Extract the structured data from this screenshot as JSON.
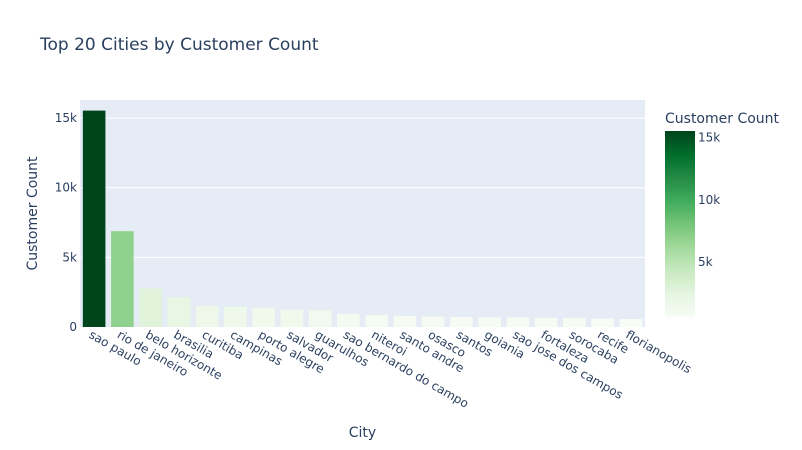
{
  "chart_data": {
    "type": "bar",
    "title": "Top 20 Cities by Customer Count",
    "xlabel": "City",
    "ylabel": "Customer Count",
    "ylim": [
      0,
      16300
    ],
    "yticks": [
      0,
      5000,
      10000,
      15000
    ],
    "ytick_labels": [
      "0",
      "5k",
      "10k",
      "15k"
    ],
    "grid": true,
    "categories": [
      "sao paulo",
      "rio de janeiro",
      "belo horizonte",
      "brasilia",
      "curitiba",
      "campinas",
      "porto alegre",
      "salvador",
      "guarulhos",
      "sao bernardo do campo",
      "niteroi",
      "santo andre",
      "osasco",
      "santos",
      "goiania",
      "sao jose dos campos",
      "fortaleza",
      "sorocaba",
      "recife",
      "florianopolis"
    ],
    "values": [
      15540,
      6882,
      2773,
      2131,
      1521,
      1444,
      1379,
      1245,
      1189,
      938,
      849,
      797,
      746,
      713,
      692,
      691,
      654,
      633,
      613,
      570
    ],
    "colorbar": {
      "title": "Customer Count",
      "min": 570,
      "max": 15540,
      "ticks": [
        5000,
        10000,
        15000
      ],
      "tick_labels": [
        "5k",
        "10k",
        "15k"
      ],
      "colorscale": [
        "#f7fcf5",
        "#e5f5e0",
        "#c7e9c0",
        "#a1d99b",
        "#74c476",
        "#41ab5d",
        "#238b45",
        "#006d2c",
        "#00441b"
      ]
    },
    "plot_bg": "#e5ecf6"
  }
}
